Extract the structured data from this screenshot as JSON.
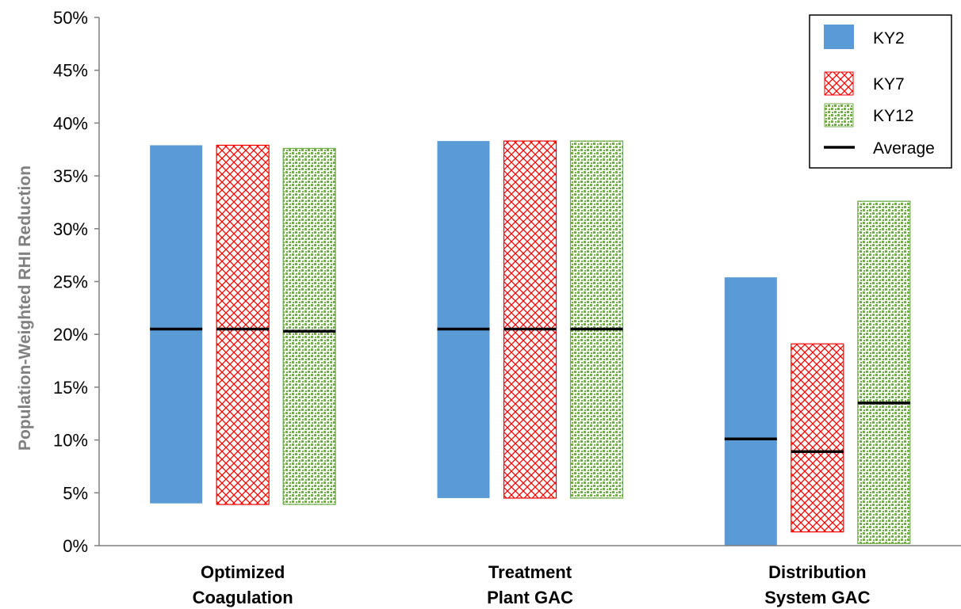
{
  "chart_data": {
    "type": "bar",
    "subtype": "floating-range-with-average",
    "ylabel": "Population-Weighted RHI Reduction",
    "ylim": [
      0,
      50
    ],
    "yticks": [
      "0%",
      "5%",
      "10%",
      "15%",
      "20%",
      "25%",
      "30%",
      "35%",
      "40%",
      "45%",
      "50%"
    ],
    "categories": [
      [
        "Optimized",
        "Coagulation"
      ],
      [
        "Treatment",
        "Plant GAC"
      ],
      [
        "Distribution",
        "System GAC"
      ]
    ],
    "series": [
      {
        "name": "KY2",
        "color": "#5b9bd5",
        "pattern": "solid",
        "low": [
          4.0,
          4.5,
          0.0
        ],
        "high": [
          37.9,
          38.3,
          25.4
        ],
        "average": [
          20.5,
          20.5,
          10.1
        ]
      },
      {
        "name": "KY7",
        "color": "#ff0000",
        "pattern": "crosshatch",
        "low": [
          3.9,
          4.5,
          1.3
        ],
        "high": [
          37.9,
          38.3,
          19.1
        ],
        "average": [
          20.5,
          20.5,
          8.9
        ]
      },
      {
        "name": "KY12",
        "color": "#70ad47",
        "pattern": "dotted",
        "low": [
          3.9,
          4.5,
          0.2
        ],
        "high": [
          37.6,
          38.3,
          32.6
        ],
        "average": [
          20.3,
          20.5,
          13.5
        ]
      }
    ],
    "legend": {
      "position": "top-right",
      "entries": [
        "KY2",
        "KY7",
        "KY12",
        "Average"
      ]
    },
    "grid": false
  }
}
